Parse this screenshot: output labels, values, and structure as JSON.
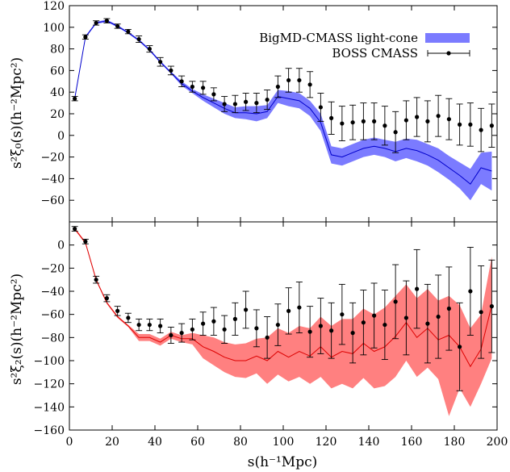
{
  "chart_data": [
    {
      "type": "line",
      "panel": "top",
      "ylabel": "s²ξ₀(s)(h⁻²Mpc²)",
      "ylim": [
        -80,
        120
      ],
      "yticks": [
        120,
        100,
        80,
        60,
        40,
        20,
        0,
        -20,
        -40,
        -60
      ],
      "xlim": [
        0,
        200
      ],
      "band_color": "#7b7bff",
      "line_color": "#0000cc",
      "legend": {
        "placement": "top-right",
        "model_label": "BigMD-CMASS light-cone",
        "data_label": "BOSS CMASS"
      },
      "model": {
        "name": "BigMD-CMASS light-cone",
        "x": [
          2.5,
          7.5,
          12.5,
          17.5,
          22.5,
          27.5,
          32.5,
          37.5,
          42.5,
          47.5,
          52.5,
          57.5,
          62.5,
          67.5,
          72.5,
          77.5,
          82.5,
          87.5,
          92.5,
          97.5,
          102.5,
          107.5,
          112.5,
          117.5,
          122.5,
          127.5,
          132.5,
          137.5,
          142.5,
          147.5,
          152.5,
          157.5,
          162.5,
          167.5,
          172.5,
          177.5,
          182.5,
          187.5,
          192.5,
          197.5
        ],
        "mean": [
          34,
          91,
          104,
          106,
          101,
          95,
          88,
          79,
          68,
          58,
          48,
          41,
          35,
          30,
          25,
          21,
          21,
          20,
          22,
          36,
          34,
          32,
          25,
          12,
          -18,
          -20,
          -16,
          -12,
          -10,
          -12,
          -15,
          -12,
          -14,
          -18,
          -23,
          -30,
          -37,
          -45,
          -30,
          -33
        ],
        "upper": [
          35,
          92,
          105,
          107,
          102,
          96,
          89,
          80,
          69,
          59,
          50,
          43,
          38,
          34,
          30,
          26,
          27,
          27,
          28,
          42,
          41,
          39,
          32,
          20,
          -10,
          -12,
          -8,
          -4,
          -2,
          -4,
          -6,
          -3,
          -4,
          -8,
          -12,
          -19,
          -25,
          -31,
          -16,
          -15
        ],
        "lower": [
          33,
          90,
          103,
          105,
          100,
          94,
          87,
          78,
          67,
          57,
          46,
          39,
          32,
          26,
          20,
          16,
          15,
          13,
          16,
          30,
          27,
          25,
          18,
          4,
          -26,
          -28,
          -24,
          -20,
          -18,
          -20,
          -24,
          -21,
          -24,
          -28,
          -34,
          -41,
          -49,
          -60,
          -45,
          -51
        ]
      },
      "observed": {
        "name": "BOSS CMASS",
        "x": [
          2.5,
          7.5,
          12.5,
          17.5,
          22.5,
          27.5,
          32.5,
          37.5,
          42.5,
          47.5,
          52.5,
          57.5,
          62.5,
          67.5,
          72.5,
          77.5,
          82.5,
          87.5,
          92.5,
          97.5,
          102.5,
          107.5,
          112.5,
          117.5,
          122.5,
          127.5,
          132.5,
          137.5,
          142.5,
          147.5,
          152.5,
          157.5,
          162.5,
          167.5,
          172.5,
          177.5,
          182.5,
          187.5,
          192.5,
          197.5
        ],
        "y": [
          34,
          91,
          104,
          106,
          101,
          96,
          89,
          80,
          68,
          60,
          50,
          45,
          44,
          38,
          29,
          29,
          31,
          30,
          33,
          45,
          51,
          51,
          47,
          26,
          16,
          11,
          12,
          13,
          13,
          9,
          3,
          14,
          17,
          13,
          18,
          15,
          10,
          10,
          5,
          9
        ],
        "err": [
          2,
          2,
          2,
          2,
          2,
          2,
          3,
          3,
          4,
          4,
          5,
          5,
          6,
          6,
          7,
          8,
          8,
          9,
          9,
          10,
          11,
          11,
          12,
          13,
          15,
          16,
          16,
          17,
          17,
          18,
          19,
          18,
          18,
          19,
          19,
          19,
          19,
          20,
          20,
          20
        ]
      }
    },
    {
      "type": "line",
      "panel": "bottom",
      "xlabel": "s(h⁻¹Mpc)",
      "ylabel": "s²ξ₂(s)(h⁻²Mpc²)",
      "ylim": [
        -160,
        20
      ],
      "yticks": [
        0,
        -20,
        -40,
        -60,
        -80,
        -100,
        -120,
        -140,
        -160
      ],
      "xlim": [
        0,
        200
      ],
      "xticks": [
        0,
        20,
        40,
        60,
        80,
        100,
        120,
        140,
        160,
        180,
        200
      ],
      "band_color": "#ff8080",
      "line_color": "#dd0000",
      "model": {
        "name": "BigMD-CMASS light-cone",
        "x": [
          2.5,
          7.5,
          12.5,
          17.5,
          22.5,
          27.5,
          32.5,
          37.5,
          42.5,
          47.5,
          52.5,
          57.5,
          62.5,
          67.5,
          72.5,
          77.5,
          82.5,
          87.5,
          92.5,
          97.5,
          102.5,
          107.5,
          112.5,
          117.5,
          122.5,
          127.5,
          132.5,
          137.5,
          142.5,
          147.5,
          152.5,
          157.5,
          162.5,
          167.5,
          172.5,
          177.5,
          182.5,
          187.5,
          192.5,
          197.5
        ],
        "mean": [
          14,
          2,
          -30,
          -50,
          -62,
          -70,
          -80,
          -80,
          -84,
          -78,
          -81,
          -81,
          -88,
          -92,
          -97,
          -100,
          -100,
          -96,
          -100,
          -92,
          -97,
          -92,
          -96,
          -88,
          -97,
          -92,
          -94,
          -85,
          -92,
          -88,
          -79,
          -67,
          -80,
          -72,
          -82,
          -78,
          -88,
          -105,
          -90,
          -52
        ],
        "upper": [
          15,
          3,
          -29,
          -49,
          -61,
          -69,
          -77,
          -77,
          -81,
          -75,
          -78,
          -76,
          -78,
          -80,
          -84,
          -86,
          -85,
          -81,
          -80,
          -72,
          -76,
          -70,
          -72,
          -62,
          -70,
          -64,
          -64,
          -55,
          -60,
          -54,
          -44,
          -34,
          -46,
          -38,
          -48,
          -44,
          -52,
          -72,
          -60,
          -10
        ],
        "lower": [
          13,
          1,
          -31,
          -51,
          -63,
          -71,
          -83,
          -83,
          -87,
          -81,
          -84,
          -86,
          -98,
          -104,
          -110,
          -114,
          -115,
          -111,
          -120,
          -112,
          -118,
          -114,
          -120,
          -114,
          -124,
          -120,
          -124,
          -115,
          -124,
          -122,
          -114,
          -100,
          -114,
          -106,
          -116,
          -148,
          -124,
          -140,
          -120,
          -98
        ]
      },
      "observed": {
        "name": "BOSS CMASS",
        "x": [
          2.5,
          7.5,
          12.5,
          17.5,
          22.5,
          27.5,
          32.5,
          37.5,
          42.5,
          47.5,
          52.5,
          57.5,
          62.5,
          67.5,
          72.5,
          77.5,
          82.5,
          87.5,
          92.5,
          97.5,
          102.5,
          107.5,
          112.5,
          117.5,
          122.5,
          127.5,
          132.5,
          137.5,
          142.5,
          147.5,
          152.5,
          157.5,
          162.5,
          167.5,
          172.5,
          177.5,
          182.5,
          187.5,
          192.5,
          197.5
        ],
        "y": [
          14,
          3,
          -30,
          -46,
          -57,
          -63,
          -69,
          -69,
          -70,
          -78,
          -76,
          -73,
          -68,
          -66,
          -73,
          -64,
          -56,
          -72,
          -80,
          -69,
          -57,
          -54,
          -75,
          -70,
          -74,
          -60,
          -76,
          -67,
          -61,
          -69,
          -49,
          -63,
          -38,
          -68,
          -62,
          -55,
          -88,
          -40,
          -58,
          -53
        ],
        "err": [
          2,
          2,
          3,
          3,
          4,
          4,
          5,
          5,
          6,
          7,
          8,
          9,
          10,
          12,
          12,
          14,
          16,
          16,
          18,
          18,
          20,
          22,
          22,
          24,
          24,
          26,
          26,
          28,
          28,
          30,
          32,
          32,
          34,
          34,
          36,
          36,
          38,
          38,
          40,
          40
        ]
      }
    }
  ]
}
